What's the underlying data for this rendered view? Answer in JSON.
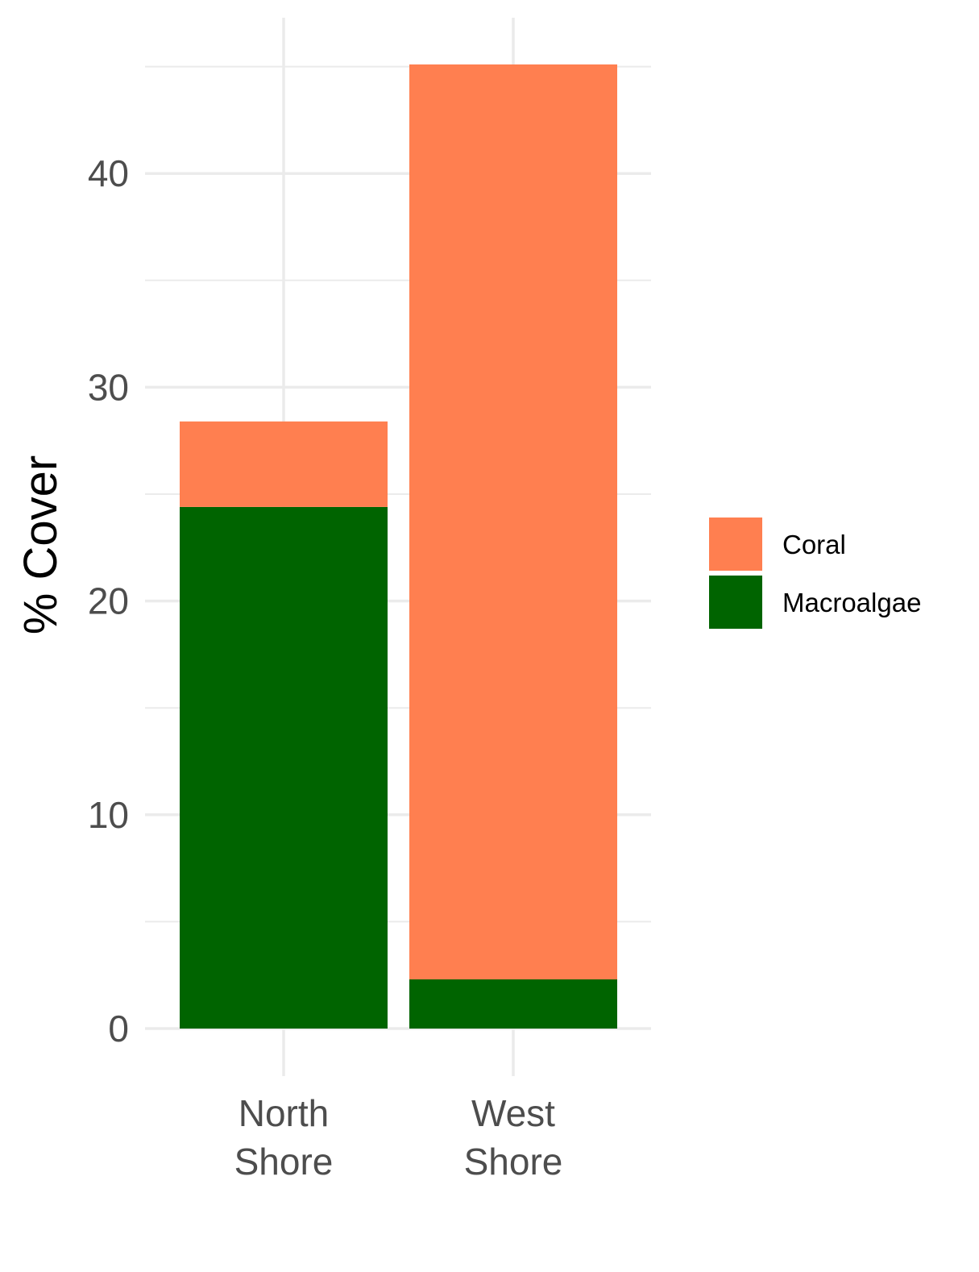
{
  "chart_data": {
    "type": "bar",
    "stacked": true,
    "categories": [
      "North\nShore",
      "West\nShore"
    ],
    "series": [
      {
        "name": "Macroalgae",
        "color": "#006400",
        "values": [
          24.4,
          2.3
        ]
      },
      {
        "name": "Coral",
        "color": "#FF7F50",
        "values": [
          4.0,
          42.8
        ]
      }
    ],
    "xlabel": "",
    "ylabel": "% Cover",
    "ylim": [
      0,
      45
    ],
    "yticks": [
      0,
      10,
      20,
      30,
      40
    ],
    "grid": true,
    "legend": {
      "position": "right",
      "order": [
        "Coral",
        "Macroalgae"
      ]
    }
  }
}
